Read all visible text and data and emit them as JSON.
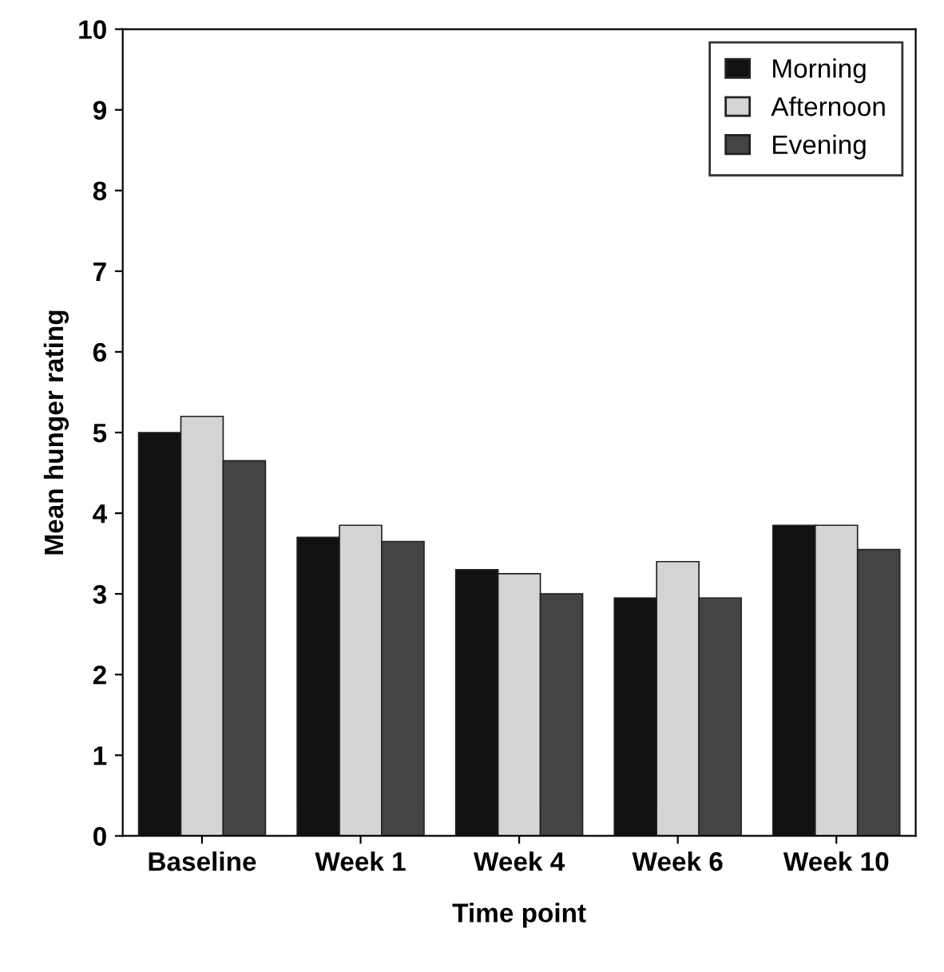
{
  "chart_data": {
    "type": "bar",
    "xlabel": "Time point",
    "ylabel": "Mean hunger rating",
    "categories": [
      "Baseline",
      "Week 1",
      "Week 4",
      "Week 6",
      "Week 10"
    ],
    "series": [
      {
        "name": "Morning",
        "color": "#111111",
        "values": [
          5.0,
          3.7,
          3.3,
          2.95,
          3.85
        ]
      },
      {
        "name": "Afternoon",
        "color": "#d4d4d4",
        "values": [
          5.2,
          3.85,
          3.25,
          3.4,
          3.85
        ]
      },
      {
        "name": "Evening",
        "color": "#444444",
        "values": [
          4.65,
          3.65,
          3.0,
          2.95,
          3.55
        ]
      }
    ],
    "ylim": [
      0,
      10
    ],
    "yticks": [
      0,
      1,
      2,
      3,
      4,
      5,
      6,
      7,
      8,
      9,
      10
    ],
    "grid": false,
    "legend": "top right"
  }
}
